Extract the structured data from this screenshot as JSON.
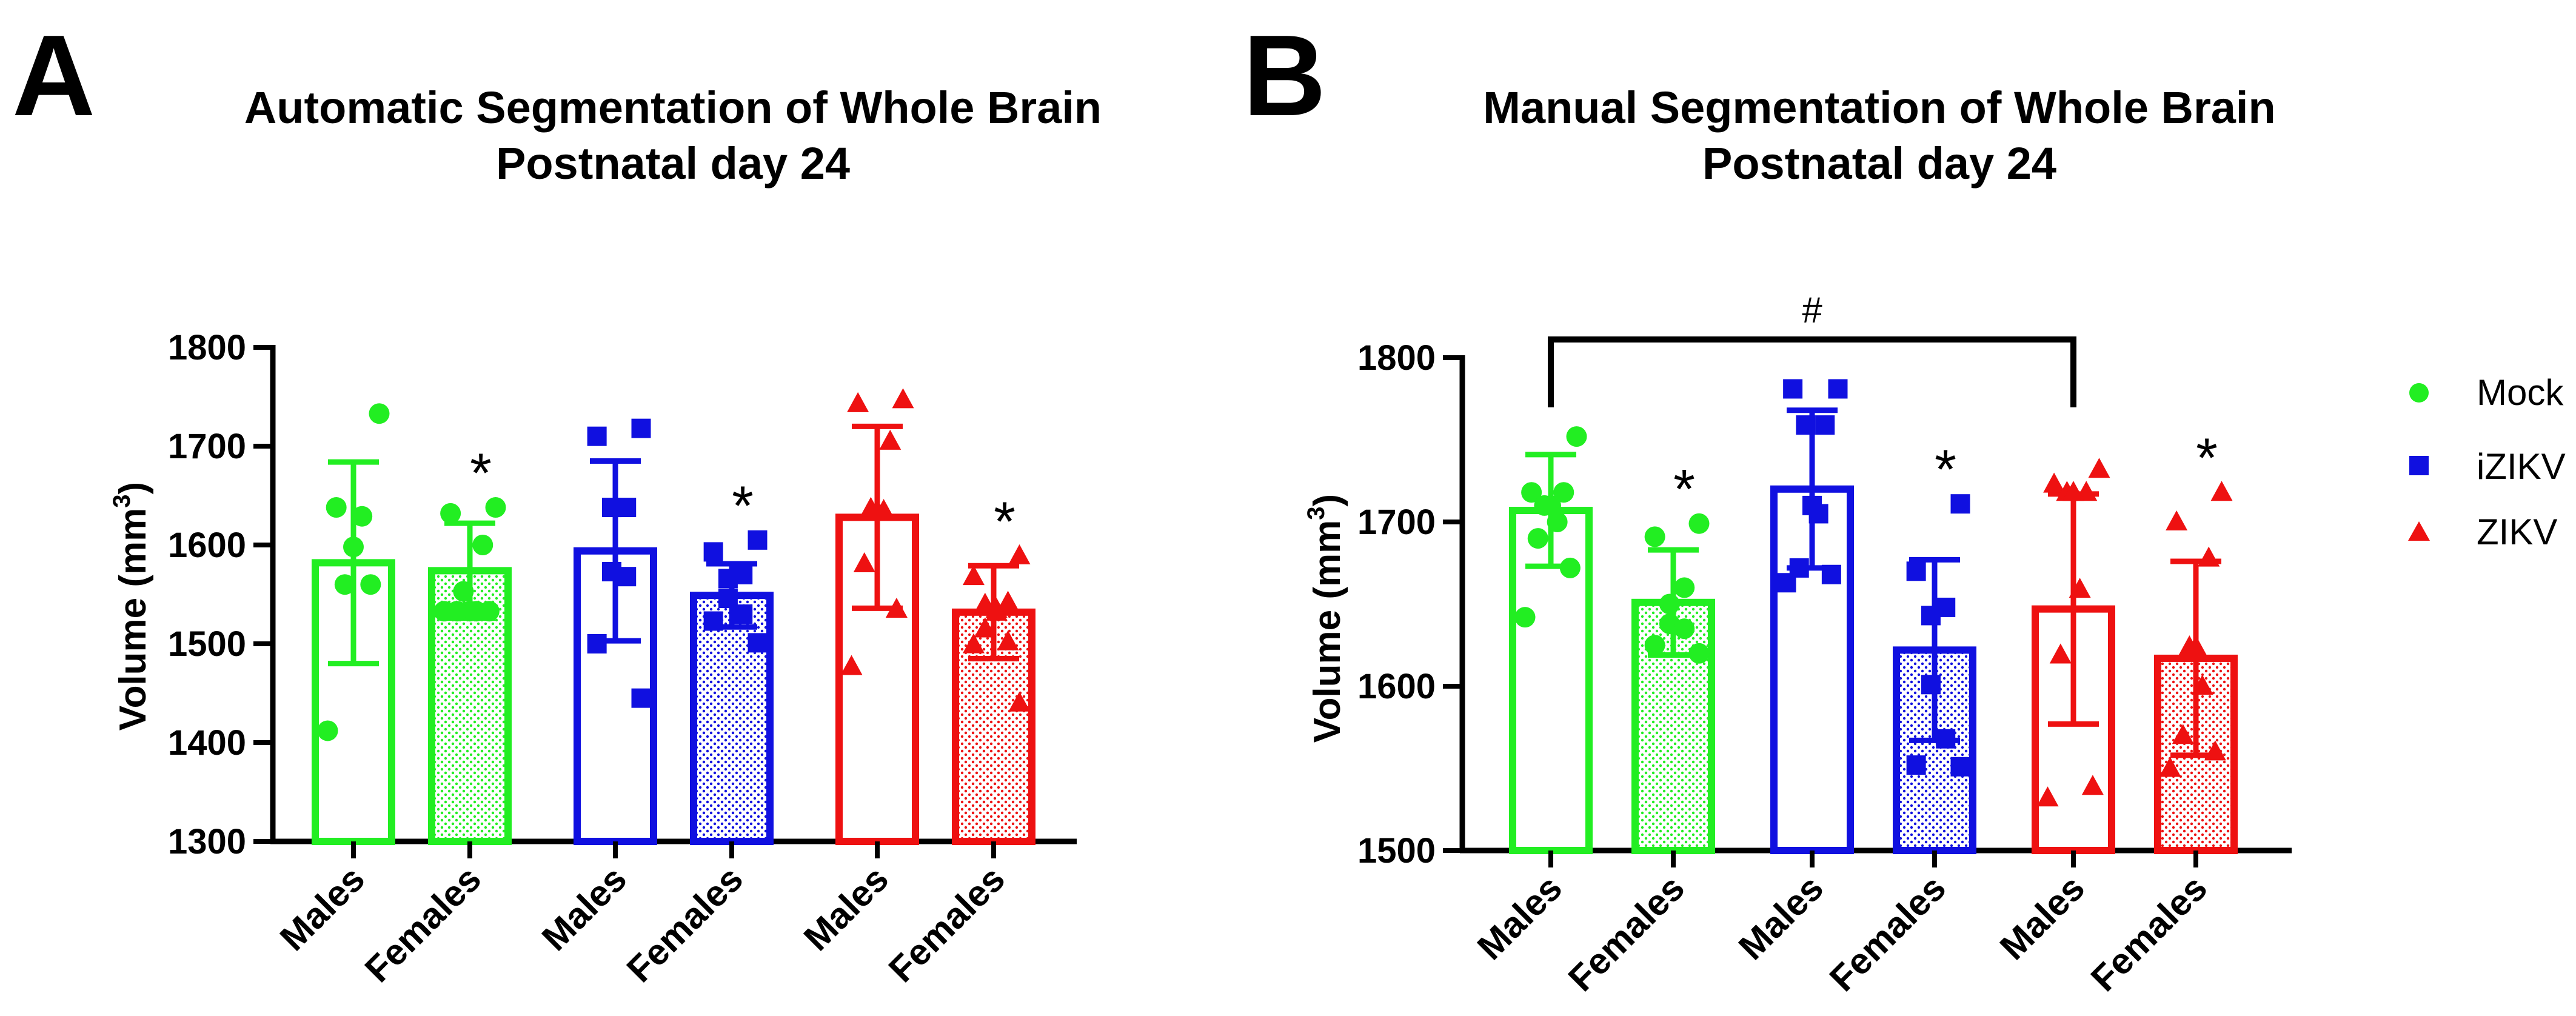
{
  "panels": {
    "A": {
      "letter": "A",
      "title_line1": "Automatic Segmentation of Whole Brain",
      "title_line2": "Postnatal day 24"
    },
    "B": {
      "letter": "B",
      "title_line1": "Manual Segmentation of Whole Brain",
      "title_line2": "Postnatal day 24",
      "bracket_label": "#"
    }
  },
  "ylabel": "Volume (mm",
  "ylabel_sup": "3",
  "ylabel_end": ")",
  "significance_marker": "*",
  "legend": [
    {
      "label": "Mock",
      "color": "#22ee22",
      "marker": "circle"
    },
    {
      "label": "iZIKV",
      "color": "#1010e0",
      "marker": "square"
    },
    {
      "label": "ZIKV",
      "color": "#ee1111",
      "marker": "triangle"
    }
  ],
  "chart_data": [
    {
      "type": "bar",
      "title": "Automatic Segmentation of Whole Brain Postnatal day 24",
      "ylabel": "Volume (mm3)",
      "ylim": [
        1300,
        1800
      ],
      "yticks": [
        1300,
        1400,
        1500,
        1600,
        1700,
        1800
      ],
      "categories": [
        "Males",
        "Females",
        "Males",
        "Females",
        "Males",
        "Females"
      ],
      "groups": [
        "Mock",
        "Mock",
        "iZIKV",
        "iZIKV",
        "ZIKV",
        "ZIKV"
      ],
      "filled": [
        false,
        true,
        false,
        true,
        false,
        true
      ],
      "means": [
        1582,
        1574,
        1594,
        1549,
        1628,
        1532
      ],
      "sd": [
        102,
        48,
        91,
        32,
        92,
        47
      ],
      "significant": [
        false,
        true,
        false,
        true,
        false,
        true
      ],
      "points": [
        [
          1733,
          1638,
          1629,
          1598,
          1560,
          1560,
          1412
        ],
        [
          1638,
          1632,
          1600,
          1553,
          1533,
          1533,
          1533,
          1533,
          1533
        ],
        [
          1718,
          1710,
          1638,
          1638,
          1573,
          1568,
          1500,
          1445
        ],
        [
          1605,
          1593,
          1570,
          1566,
          1546,
          1530,
          1523,
          1501
        ],
        [
          1747,
          1743,
          1705,
          1637,
          1635,
          1635,
          1581,
          1535,
          1477
        ],
        [
          1589,
          1568,
          1542,
          1540,
          1535,
          1532,
          1515,
          1502,
          1499,
          1440
        ]
      ],
      "bracket": null
    },
    {
      "type": "bar",
      "title": "Manual Segmentation of Whole Brain Postnatal day 24",
      "ylabel": "Volume (mm3)",
      "ylim": [
        1500,
        1800
      ],
      "yticks": [
        1500,
        1600,
        1700,
        1800
      ],
      "categories": [
        "Males",
        "Females",
        "Males",
        "Females",
        "Males",
        "Females"
      ],
      "groups": [
        "Mock",
        "Mock",
        "iZIKV",
        "iZIKV",
        "ZIKV",
        "ZIKV"
      ],
      "filled": [
        false,
        true,
        false,
        true,
        false,
        true
      ],
      "means": [
        1707,
        1651,
        1720,
        1622,
        1647,
        1617
      ],
      "sd": [
        34,
        32,
        48,
        55,
        70,
        59
      ],
      "significant": [
        false,
        true,
        false,
        true,
        false,
        true
      ],
      "points": [
        [
          1752,
          1718,
          1718,
          1710,
          1710,
          1700,
          1690,
          1672,
          1642
        ],
        [
          1699,
          1691,
          1660,
          1650,
          1638,
          1635,
          1625,
          1620
        ],
        [
          1781,
          1781,
          1759,
          1759,
          1710,
          1705,
          1672,
          1668,
          1663
        ],
        [
          1711,
          1670,
          1648,
          1643,
          1601,
          1568,
          1552,
          1551
        ],
        [
          1732,
          1723,
          1718,
          1718,
          1718,
          1659,
          1619,
          1539,
          1532
        ],
        [
          1718,
          1700,
          1678,
          1624,
          1624,
          1600,
          1570,
          1560,
          1550
        ]
      ],
      "bracket": {
        "from": 0,
        "to": 4,
        "label": "#"
      }
    }
  ]
}
